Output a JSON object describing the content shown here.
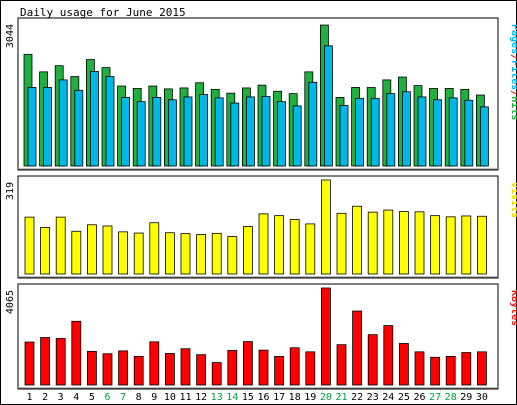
{
  "chart_data": {
    "type": "bar",
    "title": "Daily usage for June 2015",
    "categories": [
      "1",
      "2",
      "3",
      "4",
      "5",
      "6",
      "7",
      "8",
      "9",
      "10",
      "11",
      "12",
      "13",
      "14",
      "15",
      "16",
      "17",
      "18",
      "19",
      "20",
      "21",
      "22",
      "23",
      "24",
      "25",
      "26",
      "27",
      "28",
      "29",
      "30"
    ],
    "weekend_days": [
      "6",
      "7",
      "13",
      "14",
      "20",
      "21",
      "27",
      "28"
    ],
    "panels": [
      {
        "name": "hits-files-pages",
        "max_label": "3044",
        "ylim": [
          0,
          3044
        ],
        "side_label": [
          {
            "text": "Pages",
            "color": "#00b8e8"
          },
          {
            "text": "/",
            "color": "#ef1a1a"
          },
          {
            "text": "Files",
            "color": "#00b8e8"
          },
          {
            "text": "/",
            "color": "#ef1a1a"
          },
          {
            "text": "Hits",
            "color": "#20b040"
          }
        ],
        "series": [
          {
            "name": "Hits",
            "color": "#20b040",
            "values": [
              2360,
              1990,
              2120,
              1890,
              2250,
              2080,
              1690,
              1640,
              1690,
              1630,
              1650,
              1760,
              1620,
              1540,
              1650,
              1710,
              1580,
              1530,
              1990,
              2980,
              1450,
              1660,
              1660,
              1820,
              1880,
              1700,
              1640,
              1640,
              1620,
              1500
            ]
          },
          {
            "name": "Files",
            "color": "#00b8e8",
            "values": [
              1660,
              1660,
              1820,
              1600,
              2000,
              1890,
              1450,
              1360,
              1450,
              1400,
              1460,
              1510,
              1440,
              1330,
              1460,
              1470,
              1360,
              1270,
              1770,
              2540,
              1280,
              1430,
              1430,
              1530,
              1570,
              1460,
              1400,
              1440,
              1390,
              1250
            ]
          }
        ]
      },
      {
        "name": "visits",
        "max_label": "319",
        "ylim": [
          0,
          319
        ],
        "side_label": [
          {
            "text": "Visits",
            "color": "#e8e000"
          }
        ],
        "series": [
          {
            "name": "Visits",
            "color": "#ffff00",
            "values": [
              193,
              158,
              193,
              145,
              167,
              163,
              143,
              139,
              174,
              140,
              137,
              134,
              138,
              127,
              161,
              204,
              198,
              185,
              170,
              319,
              206,
              230,
              210,
              217,
              212,
              211,
              198,
              194,
              197,
              196
            ]
          }
        ]
      },
      {
        "name": "kbytes",
        "max_label": "4065",
        "ylim": [
          0,
          4065
        ],
        "side_label": [
          {
            "text": "KBytes",
            "color": "#ef1a1a"
          }
        ],
        "series": [
          {
            "name": "KBytes",
            "color": "#ff0000",
            "values": [
              1800,
              1990,
              1950,
              2670,
              1410,
              1310,
              1430,
              1200,
              1810,
              1320,
              1520,
              1270,
              940,
              1450,
              1820,
              1460,
              1200,
              1560,
              1390,
              4065,
              1690,
              3100,
              2110,
              2490,
              1740,
              1390,
              1160,
              1200,
              1360,
              1390
            ]
          }
        ]
      }
    ]
  }
}
